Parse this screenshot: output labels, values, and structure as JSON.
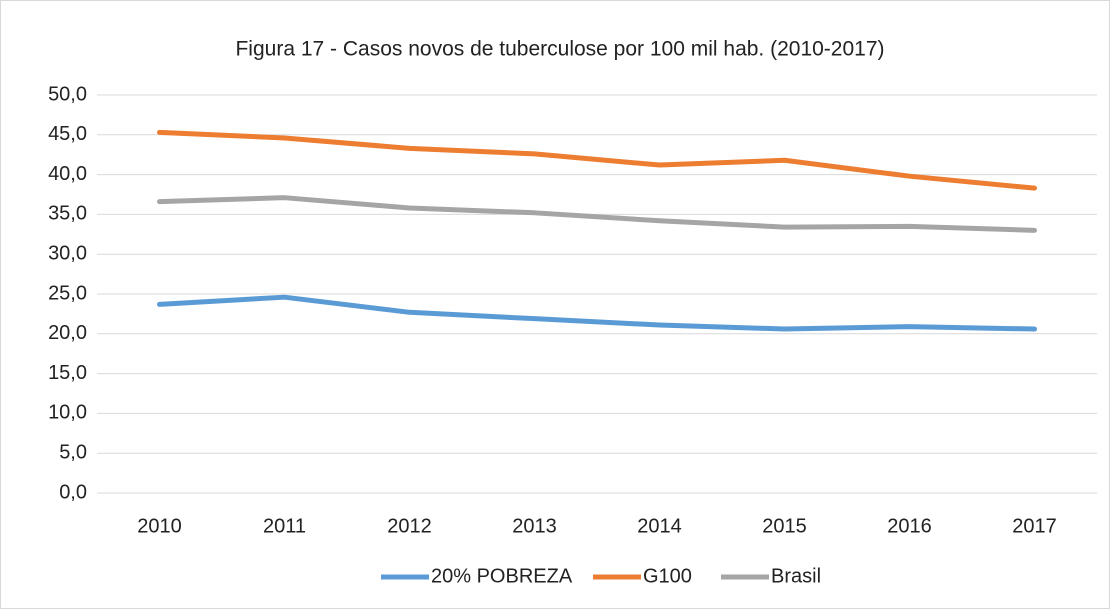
{
  "chart_data": {
    "type": "line",
    "title": "Figura 17 - Casos novos de tuberculose por 100 mil hab. (2010-2017)",
    "categories": [
      "2010",
      "2011",
      "2012",
      "2013",
      "2014",
      "2015",
      "2016",
      "2017"
    ],
    "series": [
      {
        "name": "20% POBREZA",
        "color": "#5b9bd5",
        "values": [
          23.7,
          24.6,
          22.7,
          21.9,
          21.1,
          20.6,
          20.9,
          20.6
        ]
      },
      {
        "name": "G100",
        "color": "#ed7d31",
        "values": [
          45.3,
          44.6,
          43.3,
          42.6,
          41.2,
          41.8,
          39.8,
          38.3
        ]
      },
      {
        "name": "Brasil",
        "color": "#a5a5a5",
        "values": [
          36.6,
          37.1,
          35.8,
          35.2,
          34.2,
          33.4,
          33.5,
          33.0
        ]
      }
    ],
    "ylim": [
      0,
      50
    ],
    "yticks": [
      {
        "value": 0,
        "label": "0,0"
      },
      {
        "value": 5,
        "label": "5,0"
      },
      {
        "value": 10,
        "label": "10,0"
      },
      {
        "value": 15,
        "label": "15,0"
      },
      {
        "value": 20,
        "label": "20,0"
      },
      {
        "value": 25,
        "label": "25,0"
      },
      {
        "value": 30,
        "label": "30,0"
      },
      {
        "value": 35,
        "label": "35,0"
      },
      {
        "value": 40,
        "label": "40,0"
      },
      {
        "value": 45,
        "label": "45,0"
      },
      {
        "value": 50,
        "label": "50,0"
      }
    ],
    "grid": true,
    "legend": "bottom"
  }
}
